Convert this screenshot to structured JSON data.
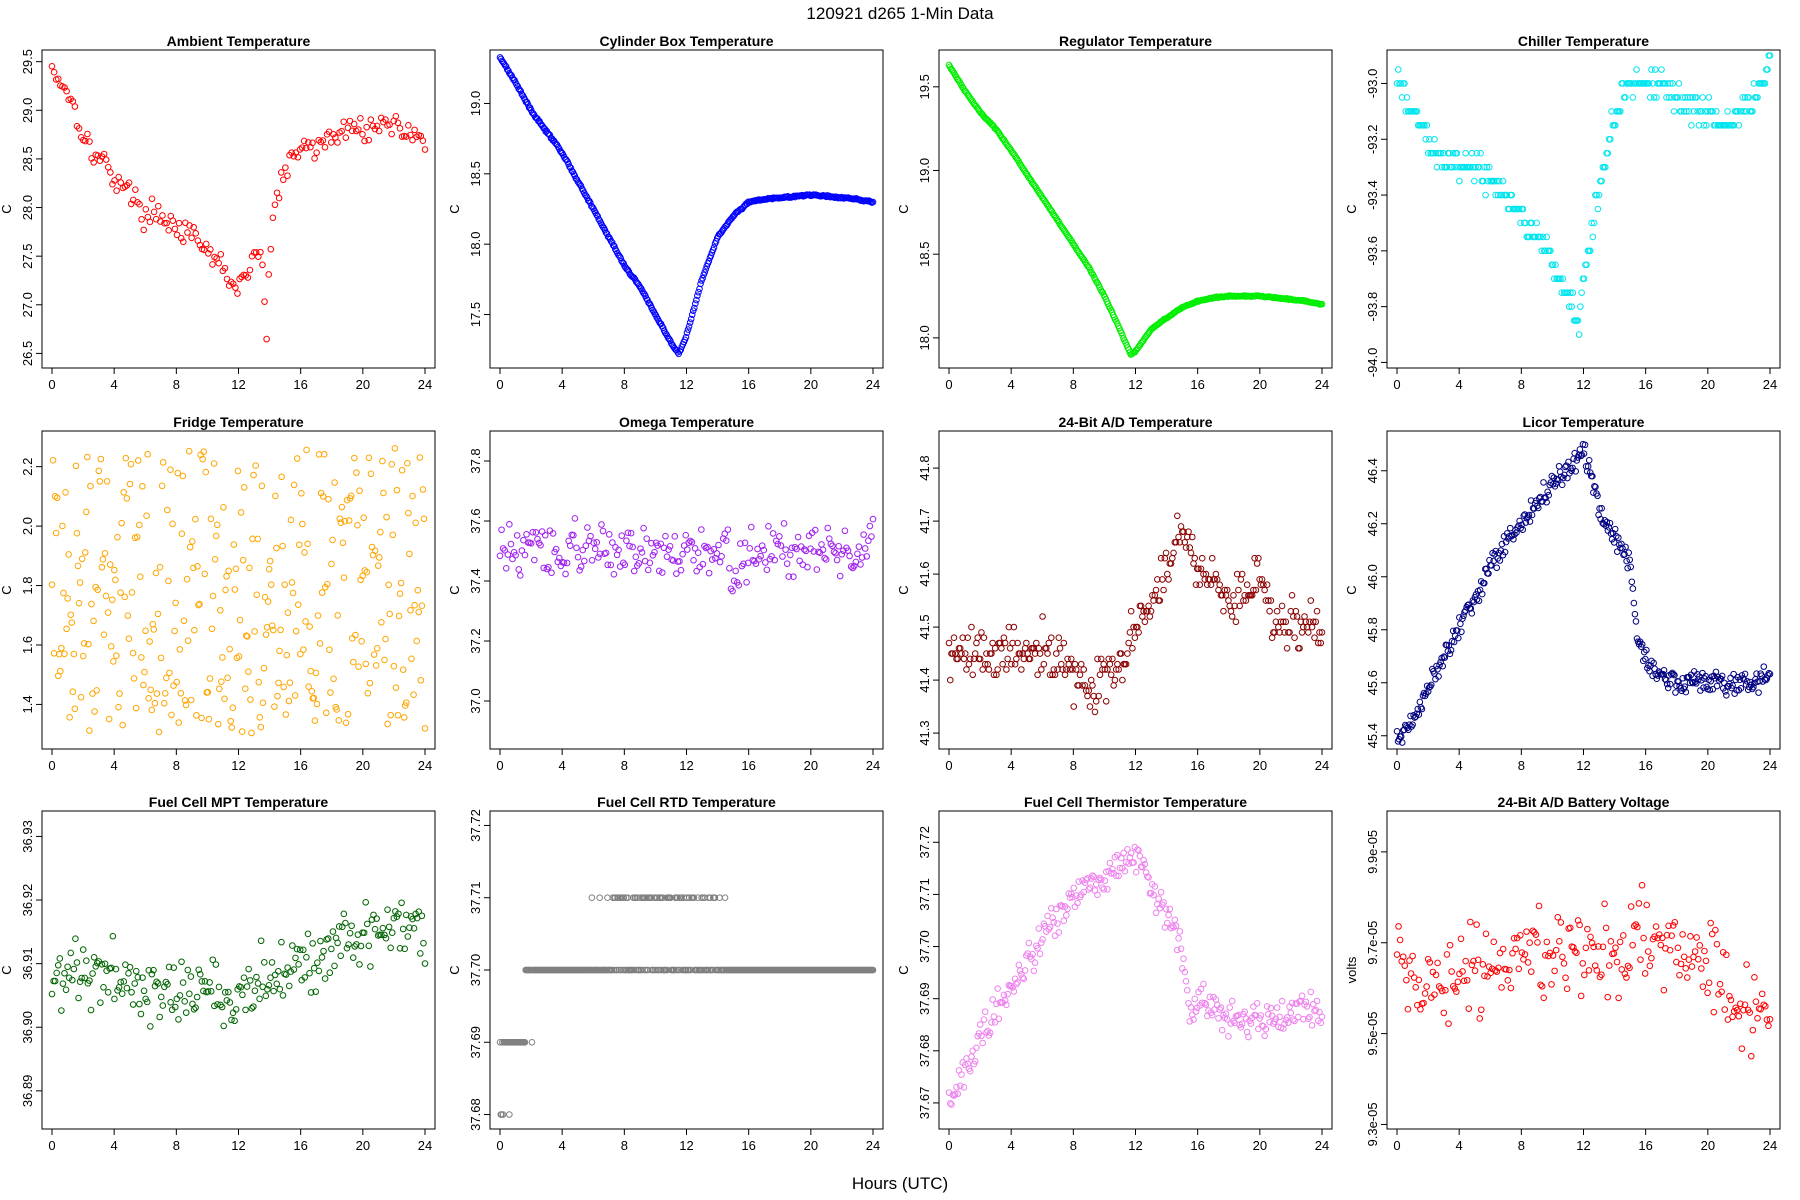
{
  "title": "120921   d265   1-Min Data",
  "xlabel": "Hours (UTC)",
  "chart_data": [
    {
      "type": "scatter",
      "title": "Ambient Temperature",
      "ylabel": "C",
      "color": "#ff0000",
      "xlim": [
        0,
        24
      ],
      "ylim": [
        26.35,
        29.62
      ],
      "yticks": [
        26.5,
        27.0,
        27.5,
        28.0,
        28.5,
        29.0,
        29.5
      ],
      "ytick_labels": [
        "26.5",
        "27.0",
        "27.5",
        "28.0",
        "28.5",
        "29.0",
        "29.5"
      ],
      "x": [
        0,
        0.5,
        1,
        1.5,
        2,
        2.5,
        3,
        3.5,
        4,
        4.5,
        5,
        5.5,
        6,
        6.5,
        7,
        7.5,
        8,
        8.5,
        9,
        9.5,
        10,
        10.5,
        11,
        11.5,
        12,
        12.5,
        13,
        13.5,
        13.8,
        14,
        14.3,
        14.6,
        15,
        15.5,
        16,
        16.5,
        17,
        17.5,
        18,
        18.5,
        19,
        19.5,
        20,
        20.5,
        21,
        21.5,
        22,
        22.5,
        23,
        23.5,
        24
      ],
      "y": [
        29.45,
        29.3,
        29.2,
        29.0,
        28.75,
        28.6,
        28.5,
        28.45,
        28.3,
        28.25,
        28.15,
        28.05,
        27.9,
        27.95,
        27.95,
        27.85,
        27.8,
        27.75,
        27.7,
        27.6,
        27.55,
        27.45,
        27.4,
        27.25,
        27.15,
        27.3,
        27.5,
        27.55,
        26.6,
        27.5,
        28.0,
        28.2,
        28.35,
        28.5,
        28.6,
        28.65,
        28.6,
        28.7,
        28.7,
        28.75,
        28.8,
        28.85,
        28.8,
        28.85,
        28.8,
        28.9,
        28.85,
        28.8,
        28.8,
        28.75,
        28.7
      ],
      "spread": 0.35,
      "density": 3
    },
    {
      "type": "scatter",
      "title": "Cylinder Box Temperature",
      "ylabel": "C",
      "color": "#0000ff",
      "xlim": [
        0,
        24
      ],
      "ylim": [
        17.12,
        19.38
      ],
      "yticks": [
        17.5,
        18.0,
        18.5,
        19.0
      ],
      "ytick_labels": [
        "17.5",
        "18.0",
        "18.5",
        "19.0"
      ],
      "x": [
        0,
        1,
        2,
        3,
        4,
        5,
        6,
        7,
        8,
        9,
        10,
        11,
        11.5,
        12,
        13,
        14,
        15,
        16,
        17,
        18,
        19,
        20,
        21,
        22,
        23,
        24
      ],
      "y": [
        19.33,
        19.15,
        18.95,
        18.8,
        18.65,
        18.45,
        18.25,
        18.05,
        17.85,
        17.7,
        17.5,
        17.3,
        17.22,
        17.35,
        17.75,
        18.05,
        18.2,
        18.3,
        18.32,
        18.33,
        18.34,
        18.35,
        18.34,
        18.33,
        18.32,
        18.3
      ],
      "spread": 0.02,
      "density": 6
    },
    {
      "type": "scatter",
      "title": "Regulator Temperature",
      "ylabel": "C",
      "color": "#00ee00",
      "xlim": [
        0,
        24
      ],
      "ylim": [
        17.82,
        19.72
      ],
      "yticks": [
        18.0,
        18.5,
        19.0,
        19.5
      ],
      "ytick_labels": [
        "18.0",
        "18.5",
        "19.0",
        "19.5"
      ],
      "x": [
        0,
        1,
        2,
        3,
        4,
        5,
        6,
        7,
        8,
        9,
        10,
        11,
        11.7,
        12,
        13,
        14,
        15,
        16,
        17,
        18,
        19,
        20,
        21,
        22,
        23,
        24
      ],
      "y": [
        19.63,
        19.48,
        19.35,
        19.25,
        19.12,
        18.98,
        18.84,
        18.7,
        18.56,
        18.42,
        18.25,
        18.05,
        17.9,
        17.92,
        18.05,
        18.12,
        18.18,
        18.22,
        18.24,
        18.25,
        18.25,
        18.25,
        18.24,
        18.23,
        18.22,
        18.2
      ],
      "spread": 0.01,
      "density": 6
    },
    {
      "type": "scatter",
      "title": "Chiller Temperature",
      "ylabel": "C",
      "color": "#00e5ee",
      "xlim": [
        0,
        24
      ],
      "ylim": [
        -94.02,
        -92.88
      ],
      "yticks": [
        -94.0,
        -93.8,
        -93.6,
        -93.4,
        -93.2,
        -93.0
      ],
      "ytick_labels": [
        "-94.0",
        "-93.8",
        "-93.6",
        "-93.4",
        "-93.2",
        "-93.0"
      ],
      "x": [
        0,
        1,
        2,
        3,
        4,
        5,
        6,
        7,
        8,
        9,
        10,
        11,
        11.7,
        12,
        13,
        14,
        15,
        16,
        17,
        18,
        19,
        20,
        21,
        22,
        23,
        24
      ],
      "y": [
        -93.0,
        -93.1,
        -93.2,
        -93.3,
        -93.3,
        -93.3,
        -93.35,
        -93.4,
        -93.45,
        -93.55,
        -93.65,
        -93.75,
        -93.85,
        -93.7,
        -93.4,
        -93.1,
        -93.0,
        -93.0,
        -93.0,
        -93.05,
        -93.1,
        -93.1,
        -93.15,
        -93.1,
        -93.05,
        -92.95
      ],
      "spread": 0.15,
      "density": 5,
      "quant": 0.05
    },
    {
      "type": "scatter",
      "title": "Fridge Temperature",
      "ylabel": "C",
      "color": "#ffa500",
      "xlim": [
        0,
        24
      ],
      "ylim": [
        1.25,
        2.32
      ],
      "yticks": [
        1.4,
        1.6,
        1.8,
        2.0,
        2.2
      ],
      "ytick_labels": [
        "1.4",
        "1.6",
        "1.8",
        "2.0",
        "2.2"
      ],
      "x": [
        0,
        2,
        4,
        6,
        8,
        10,
        12,
        14,
        16,
        18,
        20,
        22,
        24
      ],
      "y": [
        1.78,
        1.78,
        1.78,
        1.78,
        1.78,
        1.78,
        1.78,
        1.78,
        1.78,
        1.78,
        1.78,
        1.78,
        1.78
      ],
      "spread": 1.0,
      "density": 6,
      "uniform": true
    },
    {
      "type": "scatter",
      "title": "Omega Temperature",
      "ylabel": "C",
      "color": "#a020f0",
      "xlim": [
        0,
        24
      ],
      "ylim": [
        36.84,
        37.9
      ],
      "yticks": [
        37.0,
        37.2,
        37.4,
        37.6,
        37.8
      ],
      "ytick_labels": [
        "37.0",
        "37.2",
        "37.4",
        "37.6",
        "37.8"
      ],
      "x": [
        0,
        2,
        4,
        6,
        8,
        10,
        12,
        13,
        14,
        14.5,
        15,
        15.5,
        16,
        17,
        18,
        19,
        20,
        21,
        22,
        23,
        24
      ],
      "y": [
        37.5,
        37.5,
        37.5,
        37.5,
        37.5,
        37.5,
        37.5,
        37.5,
        37.5,
        37.55,
        37.4,
        37.45,
        37.5,
        37.5,
        37.5,
        37.5,
        37.5,
        37.5,
        37.5,
        37.5,
        37.5
      ],
      "spread": 0.25,
      "density": 4
    },
    {
      "type": "scatter",
      "title": "24-Bit A/D Temperature",
      "ylabel": "C",
      "color": "#8b0000",
      "xlim": [
        0,
        24
      ],
      "ylim": [
        41.27,
        41.87
      ],
      "yticks": [
        41.3,
        41.4,
        41.5,
        41.6,
        41.7,
        41.8
      ],
      "ytick_labels": [
        "41.3",
        "41.4",
        "41.5",
        "41.6",
        "41.7",
        "41.8"
      ],
      "x": [
        0,
        2,
        4,
        6,
        8,
        9,
        10,
        11,
        12,
        13,
        14,
        15,
        16,
        17,
        18,
        19,
        20,
        21,
        22,
        23,
        24
      ],
      "y": [
        41.45,
        41.45,
        41.45,
        41.45,
        41.42,
        41.38,
        41.4,
        41.42,
        41.5,
        41.55,
        41.6,
        41.68,
        41.62,
        41.58,
        41.55,
        41.55,
        41.6,
        41.5,
        41.5,
        41.5,
        41.5
      ],
      "spread": 0.14,
      "density": 5,
      "quant": 0.01
    },
    {
      "type": "scatter",
      "title": "Licor Temperature",
      "ylabel": "C",
      "color": "#000080",
      "xlim": [
        0,
        24
      ],
      "ylim": [
        45.35,
        46.55
      ],
      "yticks": [
        45.4,
        45.6,
        45.8,
        46.0,
        46.2,
        46.4
      ],
      "ytick_labels": [
        "45.4",
        "45.6",
        "45.8",
        "46.0",
        "46.2",
        "46.4"
      ],
      "x": [
        0,
        1,
        2,
        3,
        4,
        5,
        6,
        7,
        8,
        9,
        10,
        11,
        12,
        12.5,
        13,
        14,
        15,
        15.5,
        16,
        17,
        18,
        19,
        20,
        21,
        22,
        23,
        24
      ],
      "y": [
        45.38,
        45.45,
        45.58,
        45.68,
        45.8,
        45.92,
        46.05,
        46.13,
        46.2,
        46.28,
        46.35,
        46.4,
        46.48,
        46.38,
        46.25,
        46.15,
        46.05,
        45.75,
        45.7,
        45.62,
        45.6,
        45.6,
        45.6,
        45.6,
        45.6,
        45.6,
        45.62
      ],
      "spread": 0.12,
      "density": 6
    },
    {
      "type": "scatter",
      "title": "Fuel Cell MPT Temperature",
      "ylabel": "C",
      "color": "#006400",
      "xlim": [
        0,
        24
      ],
      "ylim": [
        36.884,
        36.934
      ],
      "yticks": [
        36.89,
        36.9,
        36.91,
        36.92,
        36.93
      ],
      "ytick_labels": [
        "36.89",
        "36.90",
        "36.91",
        "36.92",
        "36.93"
      ],
      "x": [
        0,
        2,
        4,
        6,
        8,
        10,
        12,
        14,
        16,
        18,
        20,
        22,
        24
      ],
      "y": [
        36.908,
        36.909,
        36.908,
        36.907,
        36.906,
        36.905,
        36.905,
        36.907,
        36.91,
        36.912,
        36.914,
        36.917,
        36.916
      ],
      "spread": 0.016,
      "density": 4
    },
    {
      "type": "scatter",
      "title": "Fuel Cell RTD Temperature",
      "ylabel": "C",
      "color": "#808080",
      "xlim": [
        0,
        24
      ],
      "ylim": [
        37.678,
        37.722
      ],
      "yticks": [
        37.68,
        37.69,
        37.7,
        37.71,
        37.72
      ],
      "ytick_labels": [
        "37.68",
        "37.69",
        "37.70",
        "37.71",
        "37.72"
      ],
      "x": [
        0,
        1,
        2,
        3,
        4,
        6,
        8,
        10,
        12,
        14,
        16,
        18,
        20,
        22,
        24
      ],
      "y": [
        37.685,
        37.69,
        37.697,
        37.699,
        37.7,
        37.703,
        37.704,
        37.705,
        37.705,
        37.704,
        37.702,
        37.701,
        37.7,
        37.7,
        37.7
      ],
      "spread": 0.01,
      "density": 8,
      "quant": 0.01
    },
    {
      "type": "scatter",
      "title": "Fuel Cell Thermistor Temperature",
      "ylabel": "C",
      "color": "#ee82ee",
      "xlim": [
        0,
        24
      ],
      "ylim": [
        37.665,
        37.726
      ],
      "yticks": [
        37.67,
        37.68,
        37.69,
        37.7,
        37.71,
        37.72
      ],
      "ytick_labels": [
        "37.67",
        "37.68",
        "37.69",
        "37.70",
        "37.71",
        "37.72"
      ],
      "x": [
        0,
        1,
        2,
        3,
        4,
        5,
        6,
        7,
        8,
        9,
        10,
        11,
        12,
        13,
        14,
        15,
        15.5,
        16,
        17,
        18,
        19,
        20,
        21,
        22,
        23,
        24
      ],
      "y": [
        37.67,
        37.675,
        37.682,
        37.688,
        37.692,
        37.697,
        37.702,
        37.706,
        37.709,
        37.712,
        37.713,
        37.716,
        37.718,
        37.712,
        37.706,
        37.7,
        37.685,
        37.69,
        37.688,
        37.686,
        37.686,
        37.686,
        37.686,
        37.687,
        37.688,
        37.688
      ],
      "spread": 0.01,
      "density": 5
    },
    {
      "type": "scatter",
      "title": "24-Bit A/D Battery Voltage",
      "ylabel": "volts",
      "color": "#ff0000",
      "xlim": [
        0,
        24
      ],
      "ylim": [
        9.29e-05,
        9.99e-05
      ],
      "yticks": [
        9.3e-05,
        9.5e-05,
        9.7e-05,
        9.9e-05
      ],
      "ytick_labels": [
        "9.3e-05",
        "9.5e-05",
        "9.7e-05",
        "9.9e-05"
      ],
      "x": [
        0,
        2,
        4,
        6,
        8,
        10,
        12,
        14,
        16,
        18,
        20,
        22,
        24
      ],
      "y": [
        9.66e-05,
        9.58e-05,
        9.62e-05,
        9.66e-05,
        9.68e-05,
        9.68e-05,
        9.68e-05,
        9.68e-05,
        9.7e-05,
        9.7e-05,
        9.66e-05,
        9.52e-05,
        9.58e-05
      ],
      "spread": 2.8e-06,
      "density": 4
    }
  ]
}
